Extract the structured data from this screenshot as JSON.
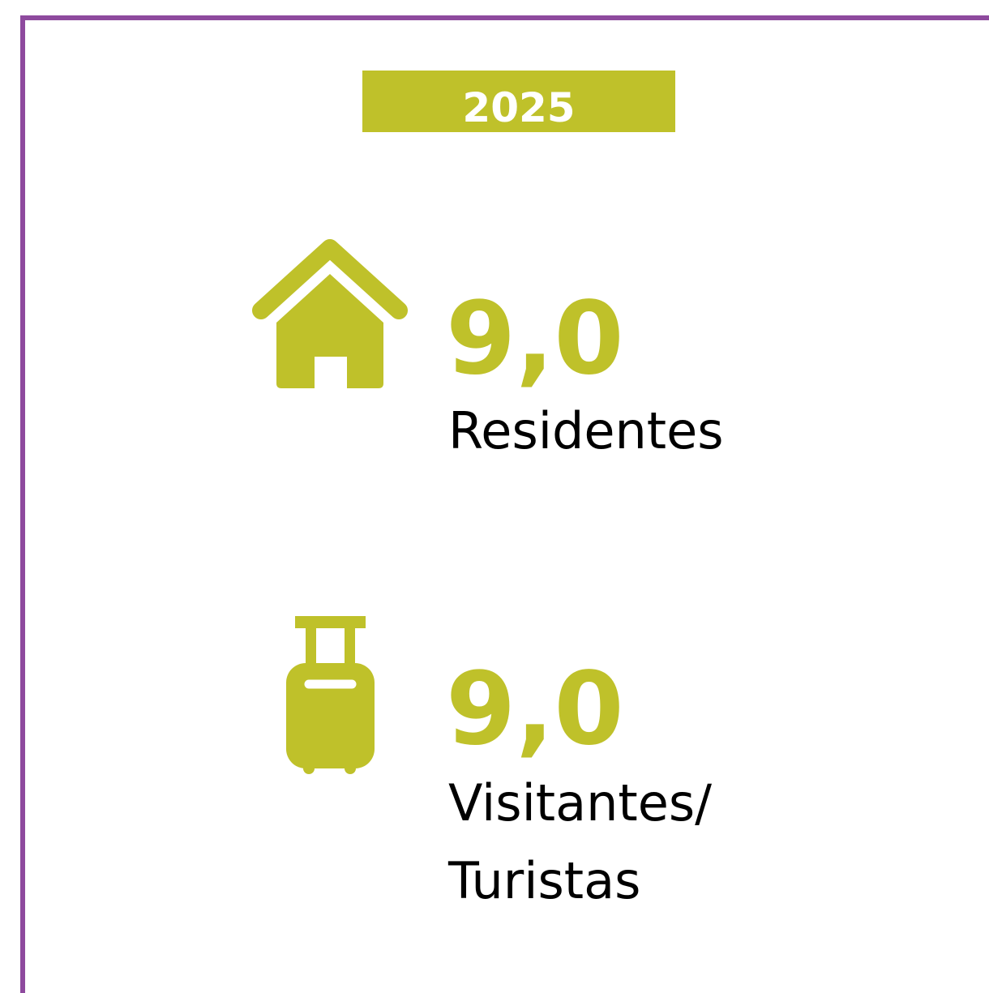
{
  "year": "2025",
  "items": [
    {
      "value": "9,0",
      "label_lines": [
        "Residentes"
      ]
    },
    {
      "value": "9,0",
      "label_lines": [
        "Visitantes/",
        "Turistas"
      ]
    }
  ]
}
